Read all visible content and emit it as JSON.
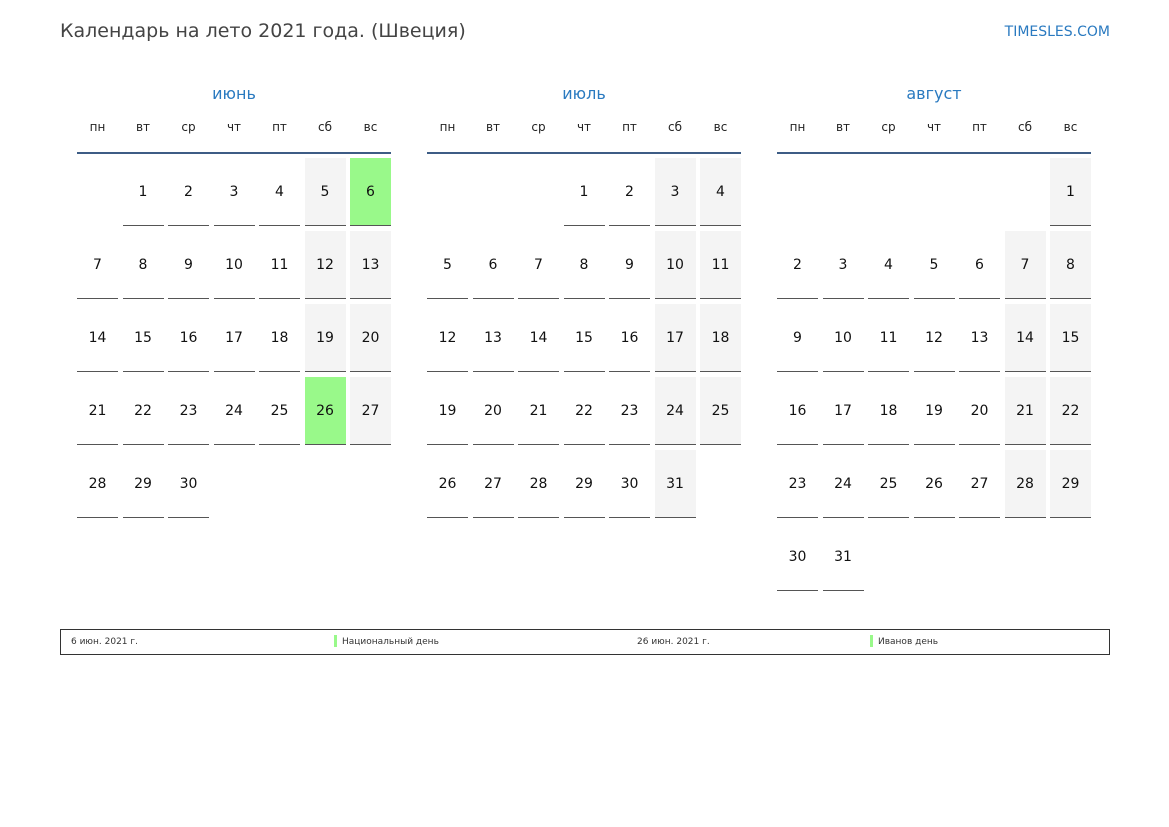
{
  "title": "Календарь на лето 2021 года. (Швеция)",
  "site": "TIMESLES.COM",
  "weekdays": [
    "пн",
    "вт",
    "ср",
    "чт",
    "пт",
    "сб",
    "вс"
  ],
  "colors": {
    "holiday": "#99f98a",
    "weekend": "#f4f4f4",
    "accent": "#2a7ac0"
  },
  "months": [
    {
      "name": "июнь",
      "weeks": [
        [
          null,
          1,
          2,
          3,
          4,
          5,
          6
        ],
        [
          7,
          8,
          9,
          10,
          11,
          12,
          13
        ],
        [
          14,
          15,
          16,
          17,
          18,
          19,
          20
        ],
        [
          21,
          22,
          23,
          24,
          25,
          26,
          27
        ],
        [
          28,
          29,
          30,
          null,
          null,
          null,
          null
        ]
      ],
      "holidays": [
        6,
        26
      ]
    },
    {
      "name": "июль",
      "weeks": [
        [
          null,
          null,
          null,
          1,
          2,
          3,
          4
        ],
        [
          5,
          6,
          7,
          8,
          9,
          10,
          11
        ],
        [
          12,
          13,
          14,
          15,
          16,
          17,
          18
        ],
        [
          19,
          20,
          21,
          22,
          23,
          24,
          25
        ],
        [
          26,
          27,
          28,
          29,
          30,
          31,
          null
        ]
      ],
      "holidays": []
    },
    {
      "name": "август",
      "weeks": [
        [
          null,
          null,
          null,
          null,
          null,
          null,
          1
        ],
        [
          2,
          3,
          4,
          5,
          6,
          7,
          8
        ],
        [
          9,
          10,
          11,
          12,
          13,
          14,
          15
        ],
        [
          16,
          17,
          18,
          19,
          20,
          21,
          22
        ],
        [
          23,
          24,
          25,
          26,
          27,
          28,
          29
        ],
        [
          30,
          31,
          null,
          null,
          null,
          null,
          null
        ]
      ],
      "holidays": []
    }
  ],
  "legend": [
    {
      "date": "6 июн. 2021 г.",
      "name": "Национальный день"
    },
    {
      "date": "26 июн. 2021 г.",
      "name": "Иванов день"
    }
  ]
}
